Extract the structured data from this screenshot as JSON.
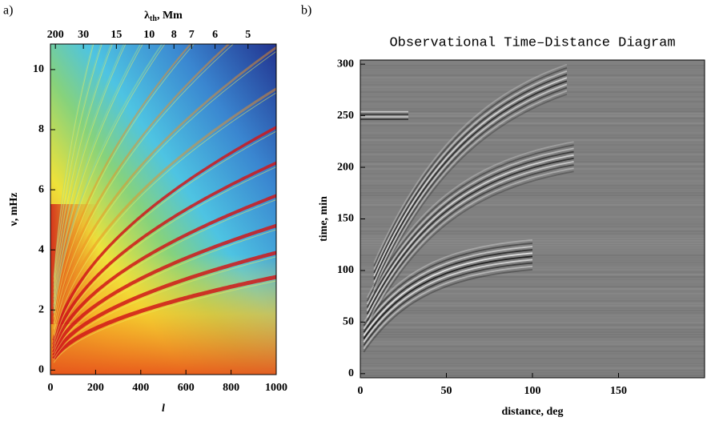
{
  "chart_data": [
    {
      "type": "heatmap",
      "colormap": "jet",
      "panel_label": "a)",
      "xlabel": "l",
      "ylabel": "ν, mHz",
      "x2label": {
        "symbol": "λ",
        "subscript": "th",
        "unit": ", Mm"
      },
      "xlim": [
        0,
        1000
      ],
      "ylim": [
        -0.15,
        10.85
      ],
      "xticks": [
        0,
        200,
        400,
        600,
        800,
        1000
      ],
      "yticks": [
        0,
        2,
        4,
        6,
        8,
        10
      ],
      "x2ticks": [
        {
          "value": 22,
          "label": "200"
        },
        {
          "value": 146,
          "label": "30"
        },
        {
          "value": 292,
          "label": "15"
        },
        {
          "value": 437,
          "label": "10"
        },
        {
          "value": 547,
          "label": "8"
        },
        {
          "value": 625,
          "label": "7"
        },
        {
          "value": 729,
          "label": "6"
        },
        {
          "value": 875,
          "label": "5"
        }
      ]
    },
    {
      "type": "heatmap",
      "colormap": "gray",
      "panel_label": "b)",
      "title": "Observational Time–Distance Diagram",
      "xlabel": "distance, deg",
      "ylabel": "time, min",
      "xlim": [
        0,
        200
      ],
      "ylim": [
        -4,
        304
      ],
      "xticks": [
        0,
        50,
        100,
        150
      ],
      "yticks": [
        0,
        50,
        100,
        150,
        200,
        250,
        300
      ]
    }
  ]
}
